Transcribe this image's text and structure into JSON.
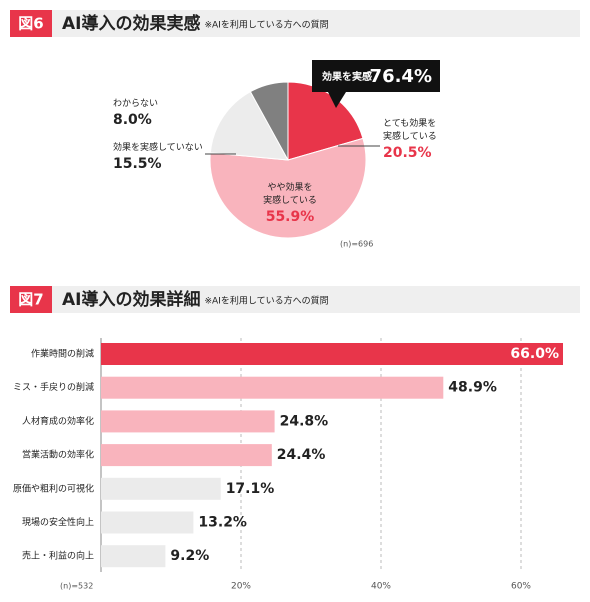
{
  "chart_data": [
    {
      "type": "pie",
      "label": "図6",
      "title": "AI導入の効果実感",
      "subtitle": "※AIを利用している方への質問",
      "categories": [
        "とても効果を\n実感している",
        "やや効果を\n実感している",
        "効果を実感していない",
        "わからない"
      ],
      "values": [
        20.5,
        55.9,
        15.5,
        8.0
      ],
      "value_labels": [
        "20.5%",
        "55.9%",
        "15.5%",
        "8.0%"
      ],
      "colors": [
        "#e8354a",
        "#f9b4bd",
        "#ececec",
        "#808080"
      ],
      "callout": {
        "label": "効果を実感",
        "value": 76.4,
        "value_label": "76.4%"
      },
      "note": "(n)=696"
    },
    {
      "type": "bar",
      "orientation": "horizontal",
      "label": "図7",
      "title": "AI導入の効果詳細",
      "subtitle": "※AIを利用している方への質問",
      "categories": [
        "作業時間の削減",
        "ミス・手戻りの削減",
        "人材育成の効率化",
        "営業活動の効率化",
        "原価や粗利の可視化",
        "現場の安全性向上",
        "売上・利益の向上"
      ],
      "values": [
        66.0,
        48.9,
        24.8,
        24.4,
        17.1,
        13.2,
        9.2
      ],
      "value_labels": [
        "66.0%",
        "48.9%",
        "24.8%",
        "24.4%",
        "17.1%",
        "13.2%",
        "9.2%"
      ],
      "colors": [
        "#e8354a",
        "#f9b4bd",
        "#f9b4bd",
        "#f9b4bd",
        "#ebebeb",
        "#ebebeb",
        "#ebebeb"
      ],
      "xlim": [
        0,
        66
      ],
      "xticks": [
        {
          "value": 20,
          "label": "20%"
        },
        {
          "value": 40,
          "label": "40%"
        },
        {
          "value": 60,
          "label": "60%"
        }
      ],
      "grid": true,
      "note": "(n)=532"
    }
  ]
}
